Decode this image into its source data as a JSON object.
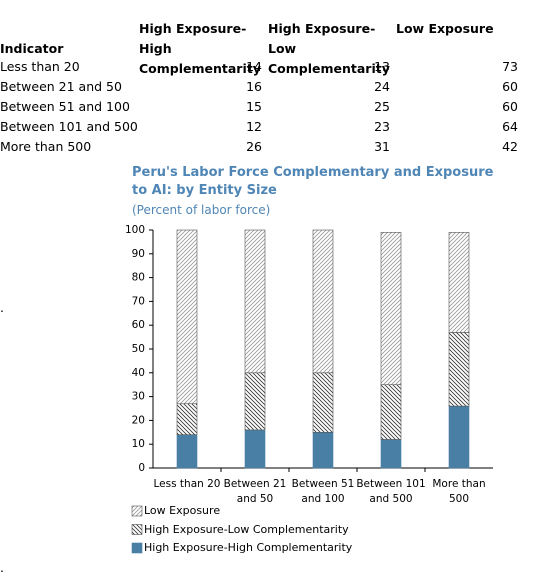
{
  "table": {
    "header": [
      "Indicator",
      "High Exposure-High Complementarity",
      "High Exposure-Low Complementarity",
      "Low Exposure"
    ],
    "rows": [
      [
        "Less than 20",
        14,
        13,
        73
      ],
      [
        "Between 21 and 50",
        16,
        24,
        60
      ],
      [
        "Between 51 and 100",
        15,
        25,
        60
      ],
      [
        "Between 101 and 500",
        12,
        23,
        64
      ],
      [
        "More than 500",
        26,
        31,
        42
      ]
    ]
  },
  "stray_marks": [
    ".",
    "."
  ],
  "chart_data": {
    "type": "stacked_bar",
    "title": "Peru's Labor Force Complementary and Exposure to AI: by Entity Size",
    "subtitle": "(Percent of labor force)",
    "categories": [
      "Less than 20",
      "Between 21 and 50",
      "Between 51 and 100",
      "Between 101 and 500",
      "More than 500"
    ],
    "series": [
      {
        "name": "High Exposure-High Complementarity",
        "color": "#4a7fa5",
        "values": [
          14,
          16,
          15,
          12,
          26
        ]
      },
      {
        "name": "High Exposure-Low Complementarity",
        "color": "#333333",
        "hatch": "backslash",
        "values": [
          13,
          24,
          25,
          23,
          31
        ]
      },
      {
        "name": "Low Exposure",
        "color": "#999999",
        "hatch": "slash",
        "values": [
          73,
          60,
          60,
          64,
          42
        ]
      }
    ],
    "ylim": [
      0,
      100
    ],
    "yticks": [
      0,
      10,
      20,
      30,
      40,
      50,
      60,
      70,
      80,
      90,
      100
    ],
    "grid": false
  }
}
